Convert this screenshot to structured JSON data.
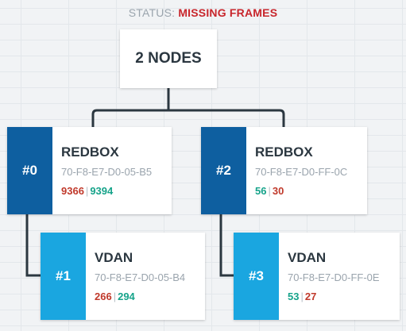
{
  "status": {
    "label": "STATUS:",
    "value": "MISSING FRAMES"
  },
  "root": {
    "label": "2 NODES"
  },
  "nodes": [
    {
      "id": "#0",
      "type": "REDBOX",
      "mac": "70-F8-E7-D0-05-B5",
      "count_a": "9366",
      "count_b": "9394",
      "count_a_color": "red",
      "count_b_color": "green",
      "tag_color": "#0e5fa0"
    },
    {
      "id": "#2",
      "type": "REDBOX",
      "mac": "70-F8-E7-D0-FF-0C",
      "count_a": "56",
      "count_b": "30",
      "count_a_color": "green",
      "count_b_color": "red",
      "tag_color": "#0e5fa0"
    },
    {
      "id": "#1",
      "type": "VDAN",
      "mac": "70-F8-E7-D0-05-B4",
      "count_a": "266",
      "count_b": "294",
      "count_a_color": "red",
      "count_b_color": "green",
      "tag_color": "#1aa6e0"
    },
    {
      "id": "#3",
      "type": "VDAN",
      "mac": "70-F8-E7-D0-FF-0E",
      "count_a": "53",
      "count_b": "27",
      "count_a_color": "green",
      "count_b_color": "red",
      "tag_color": "#1aa6e0"
    }
  ]
}
